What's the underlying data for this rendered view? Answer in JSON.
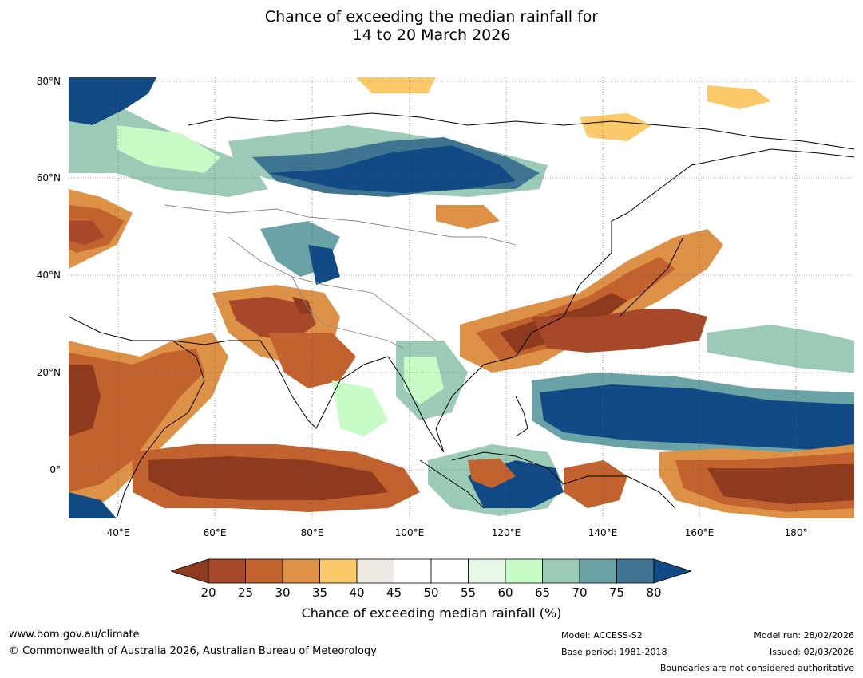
{
  "title": {
    "line1": "Chance of exceeding the median rainfall for",
    "line2": "14 to 20 March 2026"
  },
  "map": {
    "lat_labels": [
      "80°N",
      "60°N",
      "40°N",
      "20°N",
      "0°"
    ],
    "lon_labels": [
      "40°E",
      "60°E",
      "80°E",
      "100°E",
      "120°E",
      "140°E",
      "160°E",
      "180°"
    ]
  },
  "colorbar": {
    "ticks": [
      "20",
      "25",
      "30",
      "35",
      "40",
      "45",
      "50",
      "55",
      "60",
      "65",
      "70",
      "75",
      "80"
    ],
    "colors": [
      "#8e3a1e",
      "#a8482a",
      "#c2622e",
      "#dd9146",
      "#fcc96a",
      "#eeeae3",
      "#ffffff",
      "#ffffff",
      "#e8f6e8",
      "#c7fcc7",
      "#9bcbb7",
      "#6aa3a5",
      "#3f7591",
      "#124a85"
    ],
    "label": "Chance of exceeding median rainfall (%)"
  },
  "footer": {
    "url": "www.bom.gov.au/climate",
    "copyright": "© Commonwealth of Australia 2026, Australian Bureau of Meteorology",
    "model": "Model: ACCESS-S2",
    "base_period": "Base period: 1981-2018",
    "model_run": "Model run: 28/02/2026",
    "issued": "Issued: 02/03/2026",
    "boundaries": "Boundaries are not considered authoritative"
  }
}
